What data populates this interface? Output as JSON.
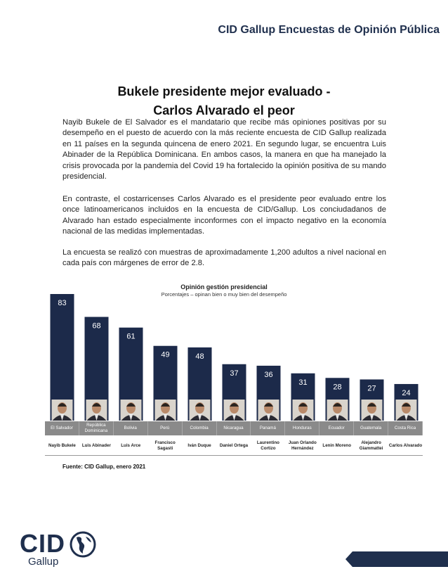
{
  "header": {
    "title": "CID Gallup Encuestas de Opinión Pública"
  },
  "headline": {
    "line1": "Bukele presidente mejor evaluado -",
    "line2": "Carlos Alvarado el peor"
  },
  "paragraphs": [
    "Nayib Bukele de El Salvador es el mandatario que recibe más opiniones positivas por su desempeño en el puesto de acuerdo con la más reciente encuesta de CID Gallup realizada en 11 países en la segunda quincena de enero 2021. En segundo lugar, se encuentra Luis Abinader de la República Dominicana. En ambos casos, la manera en que ha manejado la crisis provocada por la pandemia del Covid 19 ha fortalecido la opinión positiva de su mando presidencial.",
    "En contraste, el costarricenses Carlos Alvarado es el presidente peor evaluado entre los once latinoamericanos incluidos en la encuesta de CID/Gallup. Los conciudadanos de Alvarado han estado especialmente inconformes con el impacto negativo en la economía nacional de las medidas implementadas.",
    "La encuesta se realizó con muestras de aproximadamente 1,200 adultos a nivel nacional en cada país con márgenes de error de 2.8."
  ],
  "chart_data": {
    "type": "bar",
    "title": "Opinión gestión presidencial",
    "subtitle": "Porcentajes – opinan bien o muy bien del desempeño",
    "categories": [
      "El Salvador",
      "República Dominicana",
      "Bolivia",
      "Perú",
      "Colombia",
      "Nicaragua",
      "Panamá",
      "Honduras",
      "Ecuador",
      "Guatemala",
      "Costa Rica"
    ],
    "presidents": [
      "Nayib Bukele",
      "Luis Abinader",
      "Luis Arce",
      "Francisco Sagasti",
      "Iván Duque",
      "Daniel Ortega",
      "Laurentino Cortizo",
      "Juan Orlando Hernández",
      "Lenin Moreno",
      "Alejandro Giammattei",
      "Carlos Alvarado"
    ],
    "values": [
      83,
      68,
      61,
      49,
      48,
      37,
      36,
      31,
      28,
      27,
      24
    ],
    "ylim": [
      0,
      83
    ],
    "bar_color": "#1c2a4a"
  },
  "source": "Fuente: CID Gallup, enero 2021",
  "logo": {
    "cid": "CID",
    "gallup": "Gallup"
  },
  "colors": {
    "brand": "#1f2f4d",
    "bar": "#1c2a4a",
    "country_row": "#8a8a8a"
  },
  "icons": [
    "corner-triangle-graphic",
    "globe-icon",
    "president-photo"
  ]
}
